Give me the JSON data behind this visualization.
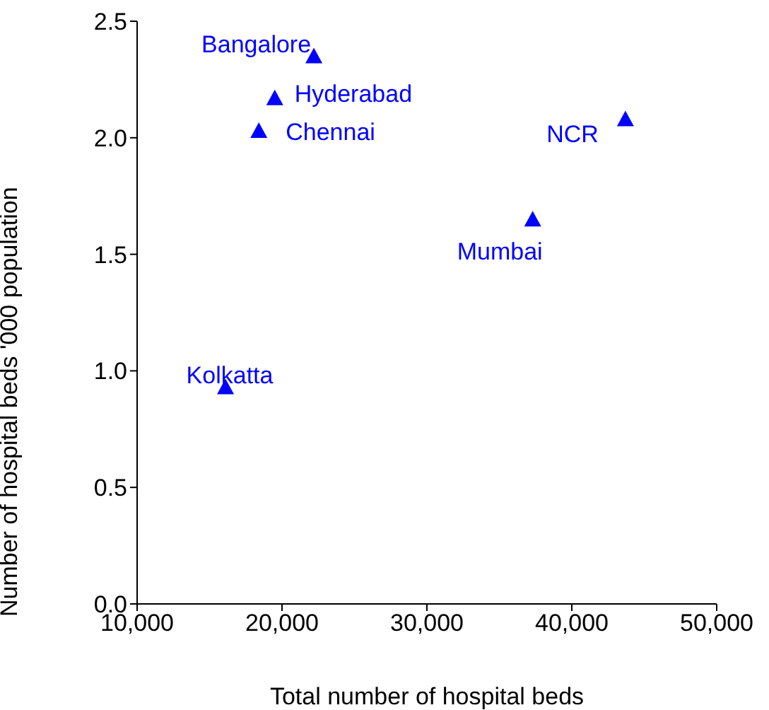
{
  "chart_data": {
    "type": "scatter",
    "xlabel": "Total number of hospital beds",
    "ylabel": "Number of hospital beds '000 population",
    "x": [
      22200,
      19500,
      18400,
      43700,
      37300,
      16100
    ],
    "values": [
      2.35,
      2.17,
      2.03,
      2.08,
      1.65,
      0.93
    ],
    "color": "#0000ff",
    "marker": "triangle",
    "grid": false,
    "legend": false,
    "xlim": [
      10000,
      50000
    ],
    "xticks": [
      {
        "value": 10000,
        "label": "10,000"
      },
      {
        "value": 20000,
        "label": "20,000"
      },
      {
        "value": 30000,
        "label": "30,000"
      },
      {
        "value": 40000,
        "label": "40,000"
      },
      {
        "value": 50000,
        "label": "50,000"
      }
    ],
    "ylim": [
      0,
      2.5
    ],
    "yticks": [
      {
        "value": 0,
        "label": "0.0"
      },
      {
        "value": 0.5,
        "label": "0.5"
      },
      {
        "value": 1,
        "label": "1.0"
      },
      {
        "value": 1.5,
        "label": "1.5"
      },
      {
        "value": 2,
        "label": "2.0"
      },
      {
        "value": 2.5,
        "label": "2.5"
      }
    ],
    "annotations": [
      {
        "text": "Bangalore",
        "x": 22200,
        "y": 2.35
      },
      {
        "text": "Hyderabad",
        "x": 19500,
        "y": 2.17
      },
      {
        "text": "Chennai",
        "x": 18400,
        "y": 2.03
      },
      {
        "text": "NCR",
        "x": 43700,
        "y": 2.08
      },
      {
        "text": "Mumbai",
        "x": 37300,
        "y": 1.65
      },
      {
        "text": "Kolkatta",
        "x": 16100,
        "y": 0.93
      }
    ]
  }
}
